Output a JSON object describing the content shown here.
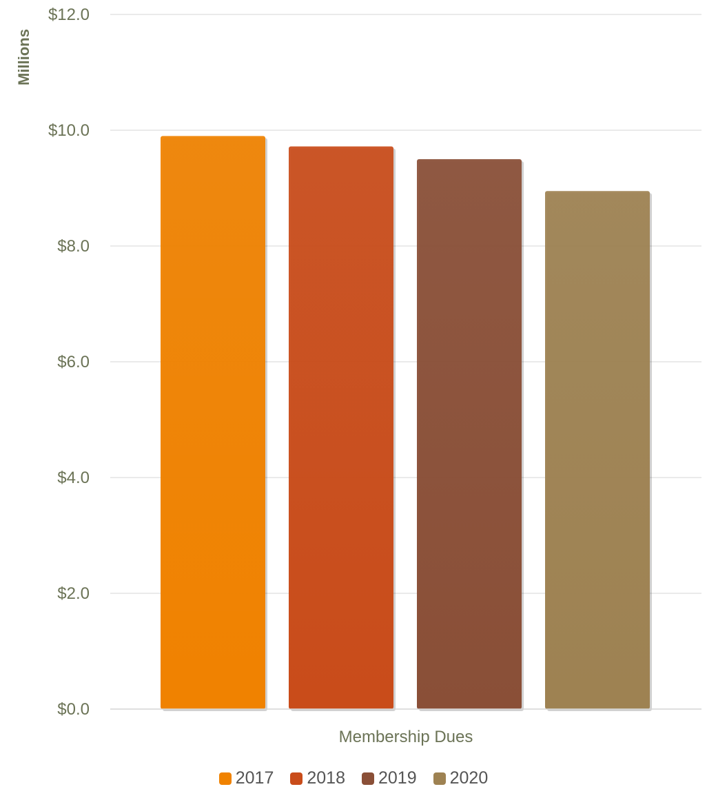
{
  "chart_data": {
    "type": "bar",
    "ylabel": "Millions",
    "xlabel": "Membership Dues",
    "categories": [
      "Membership Dues"
    ],
    "ylim": [
      0,
      12
    ],
    "yticks": [
      0,
      2,
      4,
      6,
      8,
      10,
      12
    ],
    "ytick_labels": [
      "$0.0",
      "$2.0",
      "$4.0",
      "$6.0",
      "$8.0",
      "$10.0",
      "$12.0"
    ],
    "grid": true,
    "legend_position": "bottom",
    "series": [
      {
        "name": "2017",
        "values": [
          9.9
        ],
        "color": "#F08200"
      },
      {
        "name": "2018",
        "values": [
          9.72
        ],
        "color": "#C94C1A"
      },
      {
        "name": "2019",
        "values": [
          9.5
        ],
        "color": "#8A4F37"
      },
      {
        "name": "2020",
        "values": [
          8.95
        ],
        "color": "#9E8252"
      }
    ],
    "label_color": "#6B7356",
    "tick_color": "#6B7356",
    "grid_color": "#E3E3E3"
  }
}
